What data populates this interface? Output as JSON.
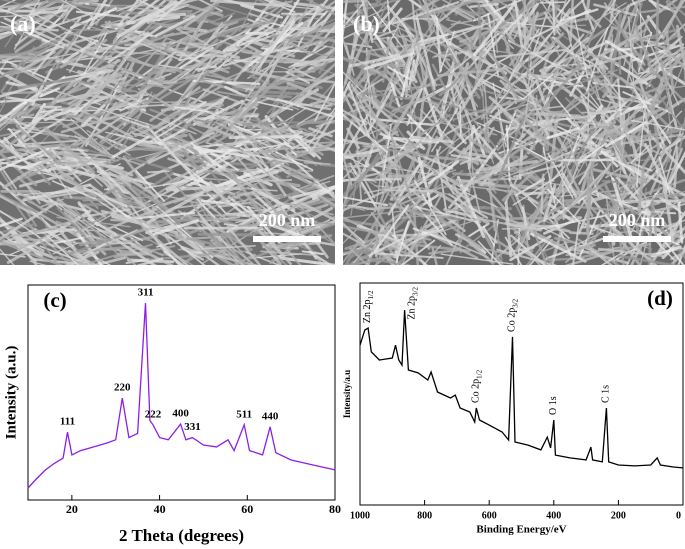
{
  "images": [
    {
      "label": "(a)",
      "scale": "200 nm"
    },
    {
      "label": "(b)",
      "scale": "200 nm"
    }
  ],
  "chart_data": [
    {
      "type": "line",
      "panel_label": "(c)",
      "xlabel": "2 Theta (degrees)",
      "ylabel": "Intensity (a.u.)",
      "color": "#8b1fe8",
      "xlim": [
        10,
        80
      ],
      "xticks": [
        20,
        40,
        60,
        80
      ],
      "ylim": [
        0,
        100
      ],
      "x": [
        10,
        12,
        14,
        16,
        18,
        19,
        20,
        22,
        25,
        28,
        30,
        31.5,
        33,
        35,
        36.8,
        37.8,
        38.5,
        40,
        42,
        44.8,
        46,
        47.5,
        50,
        53,
        55.6,
        57,
        59.3,
        60.5,
        62,
        63.5,
        65.2,
        66.5,
        70,
        75,
        80
      ],
      "values": [
        5.6,
        10,
        14,
        17,
        19.5,
        31.6,
        21,
        23,
        24.7,
        26.5,
        28,
        47.4,
        29,
        31,
        91.6,
        37,
        35,
        29,
        28,
        35.3,
        28,
        29,
        25.6,
        24.7,
        28,
        23,
        35,
        23,
        22,
        21,
        34,
        22,
        18.6,
        16.3,
        14
      ],
      "annotations": [
        {
          "text": "111",
          "x": 19
        },
        {
          "text": "220",
          "x": 31.5
        },
        {
          "text": "311",
          "x": 36.8
        },
        {
          "text": "222",
          "x": 38.5
        },
        {
          "text": "400",
          "x": 44.8
        },
        {
          "text": "331",
          "x": 47.5
        },
        {
          "text": "511",
          "x": 59.3
        },
        {
          "text": "440",
          "x": 65.2
        }
      ]
    },
    {
      "type": "line",
      "panel_label": "(d)",
      "xlabel": "Binding Energy/eV",
      "ylabel": "Intensity/a.u",
      "color": "#000000",
      "xlim": [
        1000,
        0
      ],
      "xticks": [
        1000,
        800,
        600,
        400,
        200,
        0
      ],
      "ylim": [
        0,
        100
      ],
      "x": [
        1000,
        985,
        975,
        965,
        940,
        900,
        890,
        880,
        870,
        862,
        850,
        820,
        790,
        780,
        760,
        720,
        705,
        690,
        660,
        645,
        640,
        630,
        600,
        560,
        540,
        528,
        520,
        480,
        440,
        420,
        410,
        400,
        395,
        350,
        300,
        285,
        280,
        250,
        237,
        230,
        200,
        150,
        100,
        80,
        70,
        30,
        0
      ],
      "values": [
        72,
        78.8,
        79.7,
        69,
        65.3,
        66.2,
        72,
        65.3,
        63,
        87.8,
        60.8,
        59.5,
        56.3,
        59.9,
        50.9,
        48.2,
        49.5,
        43.7,
        41.9,
        37.4,
        43.7,
        38.3,
        36,
        32.9,
        29.3,
        75.7,
        28.4,
        27,
        24.8,
        30.6,
        25.7,
        38.3,
        22.5,
        21.2,
        20.3,
        26.1,
        20.3,
        19.4,
        43.7,
        19.4,
        18,
        17.6,
        18,
        21.2,
        18,
        17.1,
        16.7
      ],
      "annotations": [
        {
          "text": "Zn 2p",
          "sub": "1/2",
          "x": 975
        },
        {
          "text": "Zn 2p",
          "sub": "3/2",
          "x": 862
        },
        {
          "text": "Co 2p",
          "sub": "1/2",
          "x": 640
        },
        {
          "text": "Co 2p",
          "sub": "3/2",
          "x": 528
        },
        {
          "text": "O 1s",
          "x": 400
        },
        {
          "text": "C 1s",
          "x": 237
        }
      ]
    }
  ]
}
